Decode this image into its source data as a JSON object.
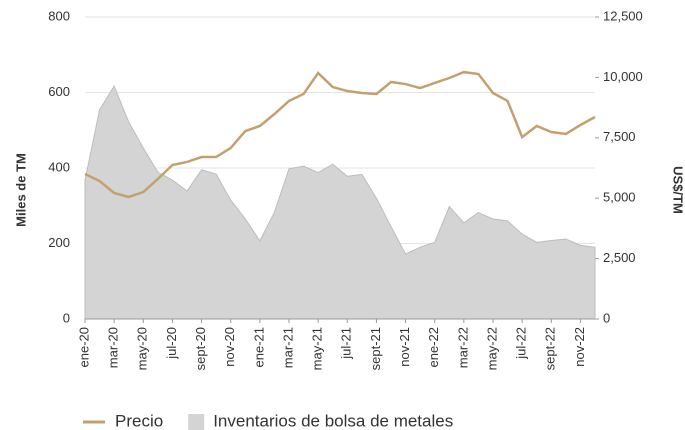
{
  "chart_data": {
    "type": "combo",
    "ylabel": "Miles de TM",
    "y2label": "US$/TM",
    "categories": [
      "ene-20",
      null,
      "mar-20",
      null,
      "may-20",
      null,
      "jul-20",
      null,
      "sept-20",
      null,
      "nov-20",
      null,
      "ene-21",
      null,
      "mar-21",
      null,
      "may-21",
      null,
      "jul-21",
      null,
      "sept-21",
      null,
      "nov-21",
      null,
      "ene-22",
      null,
      "mar-22",
      null,
      "may-22",
      null,
      "jul-22",
      null,
      "sept-22",
      null,
      "nov-22",
      null
    ],
    "series": [
      {
        "name": "Precio",
        "type": "line",
        "axis": "y2",
        "color": "#c4a06f",
        "values": [
          6000,
          5710,
          5215,
          5050,
          5255,
          5795,
          6375,
          6500,
          6705,
          6705,
          7080,
          7780,
          7990,
          8485,
          9025,
          9315,
          10180,
          9600,
          9435,
          9355,
          9315,
          9810,
          9725,
          9560,
          9770,
          9975,
          10220,
          10140,
          9355,
          9025,
          7530,
          7990,
          7740,
          7660,
          8030,
          8360
        ]
      },
      {
        "name": "Inventarios de bolsa de metales",
        "type": "area",
        "axis": "y",
        "color": "#d4d4d4",
        "values": [
          368,
          554,
          617,
          522,
          453,
          389,
          368,
          339,
          395,
          384,
          315,
          265,
          207,
          283,
          398,
          405,
          388,
          410,
          378,
          383,
          320,
          245,
          172,
          190,
          203,
          298,
          255,
          282,
          265,
          260,
          225,
          203,
          208,
          212,
          195,
          190
        ]
      }
    ],
    "ylim": [
      0,
      800
    ],
    "yticks": [
      0,
      200,
      400,
      600,
      800
    ],
    "y2lim": [
      0,
      12500
    ],
    "y2ticks": [
      0,
      {
        "value": 2500,
        "label": "2,500"
      },
      {
        "value": 5000,
        "label": "5,000"
      },
      {
        "value": 7500,
        "label": "7,500"
      },
      {
        "value": 10000,
        "label": "10,000"
      },
      {
        "value": 12500,
        "label": "12,500"
      }
    ],
    "grid": true,
    "legend": "bottom"
  }
}
